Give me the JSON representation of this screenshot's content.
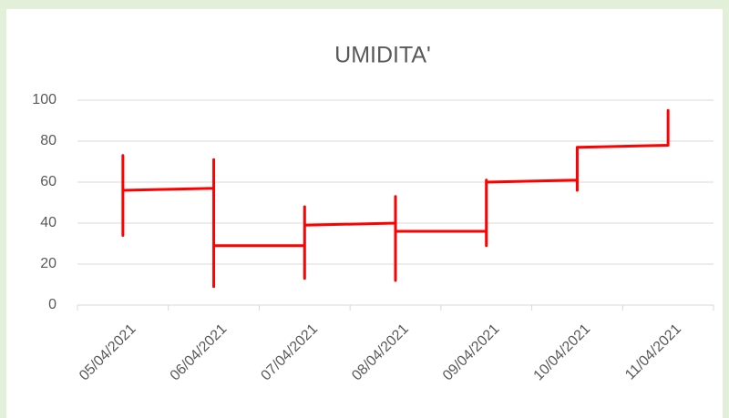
{
  "chart_data": {
    "type": "line",
    "title": "UMIDITA'",
    "categories": [
      "05/04/2021",
      "06/04/2021",
      "07/04/2021",
      "08/04/2021",
      "09/04/2021",
      "10/04/2021",
      "11/04/2021"
    ],
    "x": [
      "05/04/2021",
      "05/04/2021",
      "05/04/2021",
      "05/04/2021",
      "06/04/2021",
      "06/04/2021",
      "06/04/2021",
      "06/04/2021",
      "07/04/2021",
      "07/04/2021",
      "07/04/2021",
      "07/04/2021",
      "08/04/2021",
      "08/04/2021",
      "08/04/2021",
      "08/04/2021",
      "09/04/2021",
      "09/04/2021",
      "09/04/2021",
      "09/04/2021",
      "10/04/2021",
      "10/04/2021",
      "10/04/2021",
      "11/04/2021",
      "11/04/2021",
      "11/04/2021"
    ],
    "values": [
      50,
      73,
      34,
      56,
      57,
      71,
      9,
      29,
      29,
      48,
      13,
      39,
      40,
      53,
      12,
      36,
      36,
      29,
      61,
      60,
      61,
      56,
      77,
      78,
      95,
      82
    ],
    "color": "#ff0000",
    "ylim": [
      0,
      100
    ],
    "yticks": [
      0,
      20,
      40,
      60,
      80,
      100
    ],
    "grid": true
  }
}
